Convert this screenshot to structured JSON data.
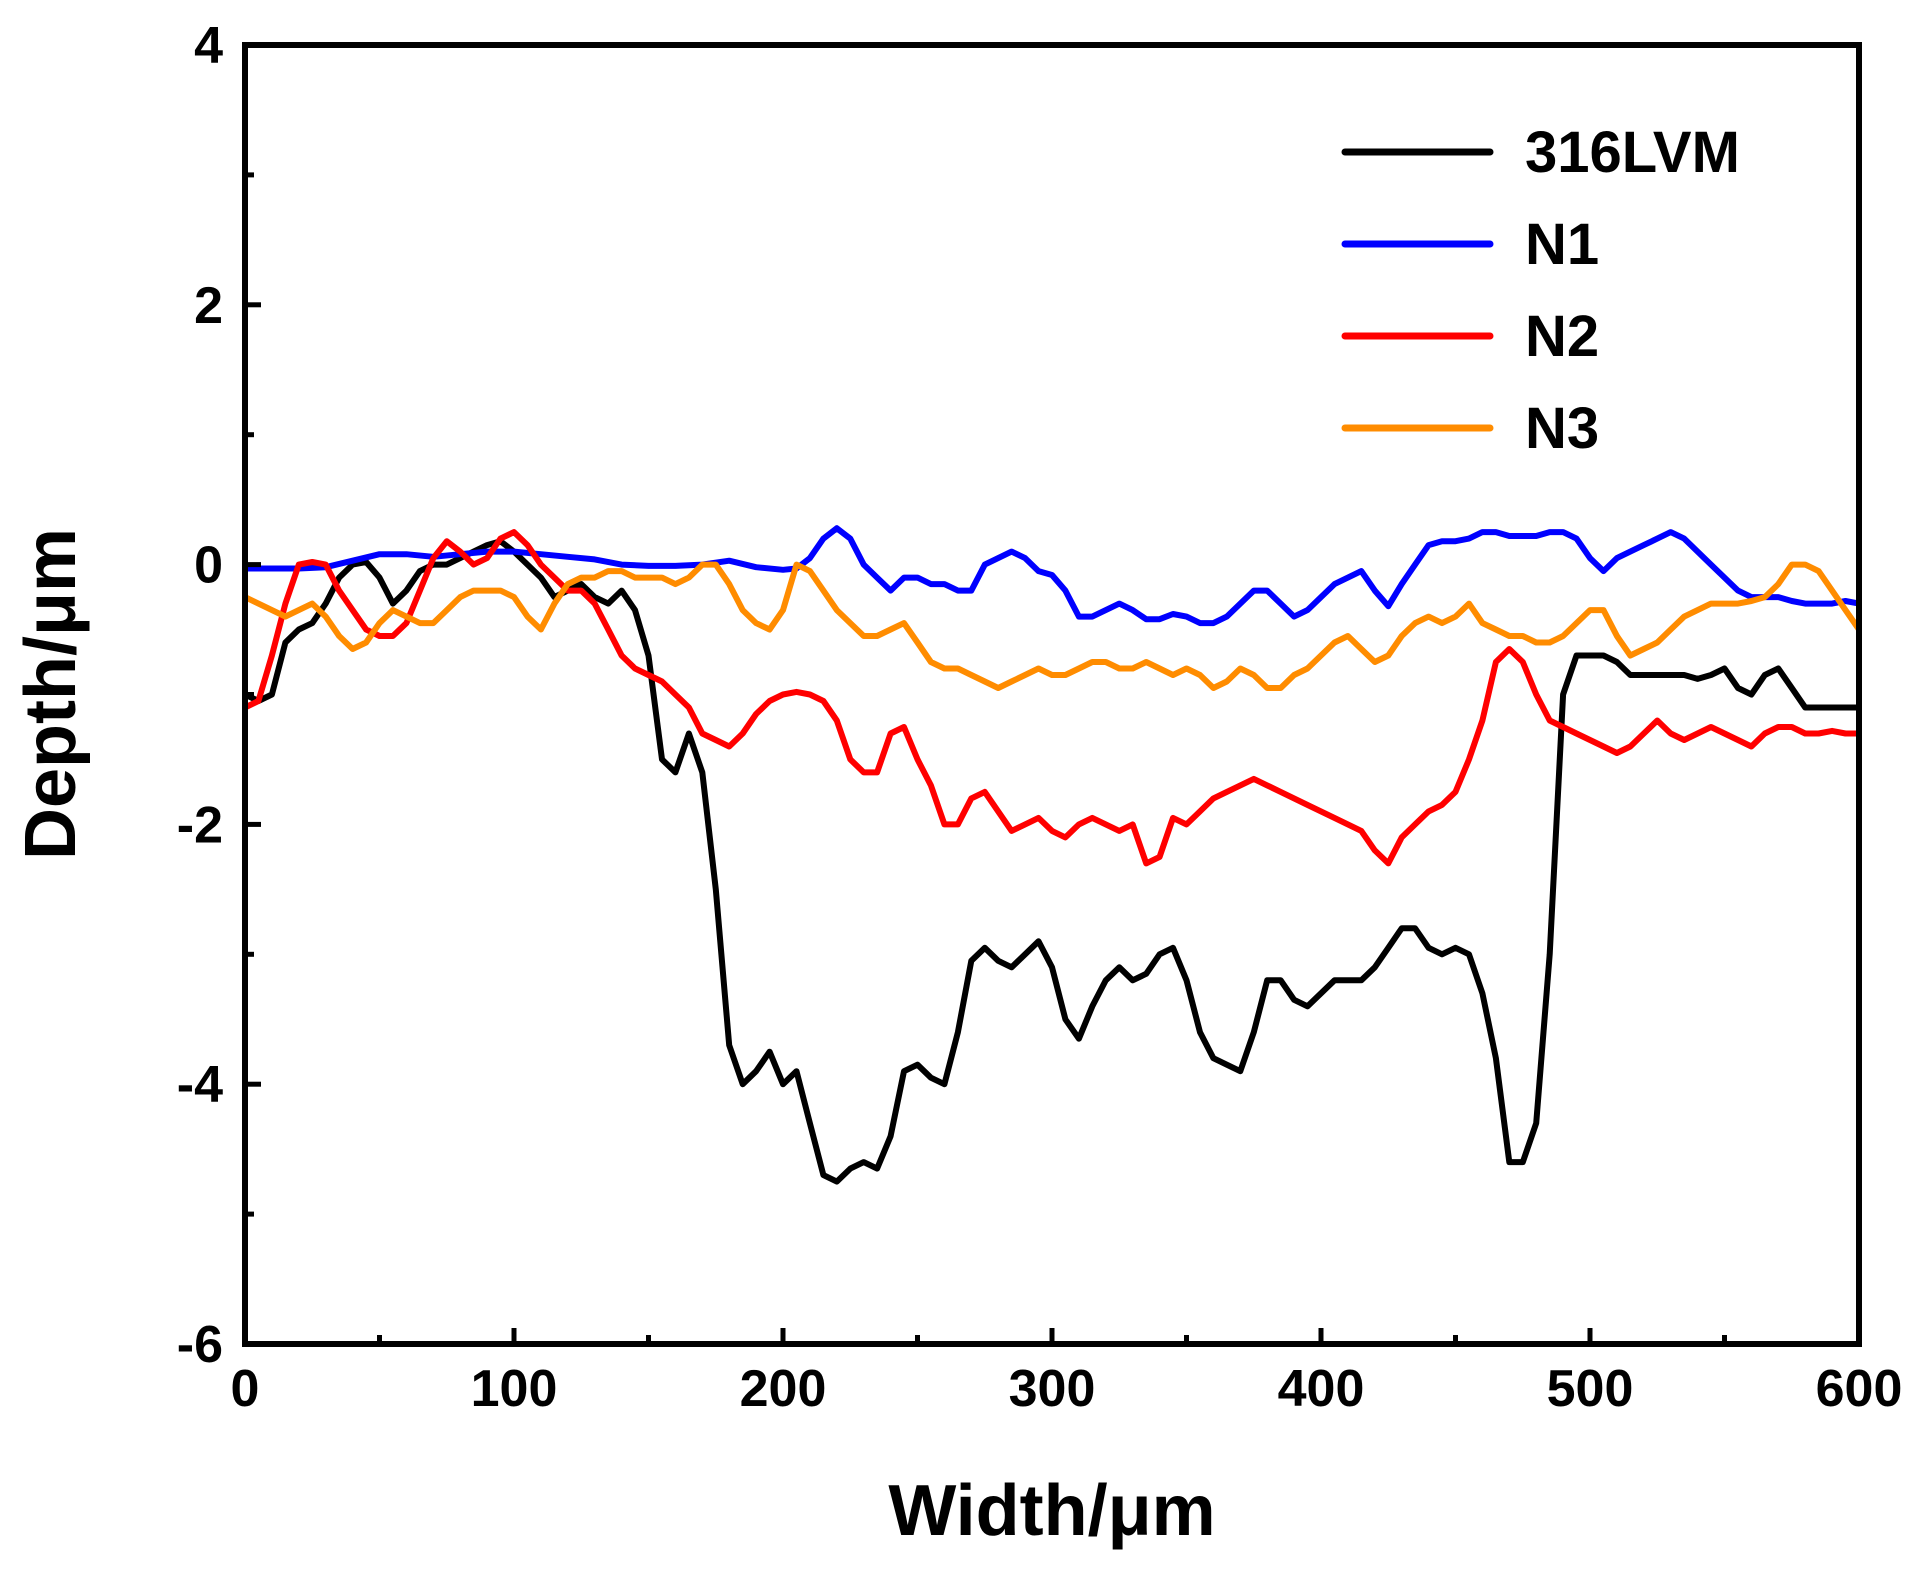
{
  "chart_data": {
    "type": "line",
    "xlabel": "Width/μm",
    "ylabel": "Depth/μm",
    "xlim": [
      0,
      600
    ],
    "ylim": [
      -6,
      4
    ],
    "xticks": [
      0,
      100,
      200,
      300,
      400,
      500,
      600
    ],
    "yticks": [
      -6,
      -4,
      -2,
      0,
      2,
      4
    ],
    "grid": false,
    "legend_position": "top-right",
    "series": [
      {
        "name": "316LVM",
        "color": "#000000",
        "x": [
          0,
          5,
          10,
          15,
          20,
          25,
          30,
          35,
          40,
          45,
          50,
          55,
          60,
          65,
          70,
          75,
          80,
          85,
          90,
          95,
          100,
          105,
          110,
          115,
          120,
          125,
          130,
          135,
          140,
          145,
          150,
          155,
          160,
          165,
          170,
          175,
          180,
          185,
          190,
          195,
          200,
          205,
          210,
          215,
          220,
          225,
          230,
          235,
          240,
          245,
          250,
          255,
          260,
          265,
          270,
          275,
          280,
          285,
          290,
          295,
          300,
          305,
          310,
          315,
          320,
          325,
          330,
          335,
          340,
          345,
          350,
          355,
          360,
          365,
          370,
          375,
          380,
          385,
          390,
          395,
          400,
          405,
          410,
          415,
          420,
          425,
          430,
          435,
          440,
          445,
          450,
          455,
          460,
          465,
          470,
          475,
          480,
          485,
          490,
          495,
          500,
          505,
          510,
          515,
          520,
          525,
          530,
          535,
          540,
          545,
          550,
          555,
          560,
          565,
          570,
          575,
          580,
          585,
          590,
          595,
          600
        ],
        "y": [
          -1.0,
          -1.05,
          -1.0,
          -0.6,
          -0.5,
          -0.45,
          -0.3,
          -0.1,
          0.0,
          0.02,
          -0.1,
          -0.3,
          -0.2,
          -0.05,
          -0.0,
          0.0,
          0.05,
          0.1,
          0.15,
          0.18,
          0.1,
          0.0,
          -0.1,
          -0.25,
          -0.2,
          -0.15,
          -0.25,
          -0.3,
          -0.2,
          -0.35,
          -0.7,
          -1.5,
          -1.6,
          -1.3,
          -1.6,
          -2.5,
          -3.7,
          -4.0,
          -3.9,
          -3.75,
          -4.0,
          -3.9,
          -4.3,
          -4.7,
          -4.75,
          -4.65,
          -4.6,
          -4.65,
          -4.4,
          -3.9,
          -3.85,
          -3.95,
          -4.0,
          -3.6,
          -3.05,
          -2.95,
          -3.05,
          -3.1,
          -3.0,
          -2.9,
          -3.1,
          -3.5,
          -3.65,
          -3.4,
          -3.2,
          -3.1,
          -3.2,
          -3.15,
          -3.0,
          -2.95,
          -3.2,
          -3.6,
          -3.8,
          -3.85,
          -3.9,
          -3.6,
          -3.2,
          -3.2,
          -3.35,
          -3.4,
          -3.3,
          -3.2,
          -3.2,
          -3.2,
          -3.1,
          -2.95,
          -2.8,
          -2.8,
          -2.95,
          -3.0,
          -2.95,
          -3.0,
          -3.3,
          -3.8,
          -4.6,
          -4.6,
          -4.3,
          -3.0,
          -1.0,
          -0.7,
          -0.7,
          -0.7,
          -0.75,
          -0.85,
          -0.85,
          -0.85,
          -0.85,
          -0.85,
          -0.88,
          -0.85,
          -0.8,
          -0.95,
          -1.0,
          -0.85,
          -0.8,
          -0.95,
          -1.1,
          -1.1,
          -1.1,
          -1.1,
          -1.1
        ]
      },
      {
        "name": "N1",
        "color": "#0000ff",
        "x": [
          0,
          10,
          20,
          30,
          40,
          50,
          60,
          70,
          80,
          90,
          100,
          110,
          120,
          130,
          140,
          150,
          160,
          170,
          180,
          190,
          200,
          205,
          210,
          215,
          220,
          225,
          230,
          235,
          240,
          245,
          250,
          255,
          260,
          265,
          270,
          275,
          280,
          285,
          290,
          295,
          300,
          305,
          310,
          315,
          320,
          325,
          330,
          335,
          340,
          345,
          350,
          355,
          360,
          365,
          370,
          375,
          380,
          385,
          390,
          395,
          400,
          405,
          410,
          415,
          420,
          425,
          430,
          435,
          440,
          445,
          450,
          455,
          460,
          465,
          470,
          475,
          480,
          485,
          490,
          495,
          500,
          505,
          510,
          515,
          520,
          525,
          530,
          535,
          540,
          545,
          550,
          555,
          560,
          565,
          570,
          575,
          580,
          585,
          590,
          595,
          600
        ],
        "y": [
          -0.03,
          -0.03,
          -0.03,
          -0.02,
          0.03,
          0.08,
          0.08,
          0.06,
          0.08,
          0.1,
          0.1,
          0.08,
          0.06,
          0.04,
          0.0,
          -0.01,
          -0.01,
          0.0,
          0.03,
          -0.02,
          -0.04,
          -0.03,
          0.05,
          0.2,
          0.28,
          0.2,
          0.0,
          -0.1,
          -0.2,
          -0.1,
          -0.1,
          -0.15,
          -0.15,
          -0.2,
          -0.2,
          0.0,
          0.05,
          0.1,
          0.05,
          -0.05,
          -0.08,
          -0.2,
          -0.4,
          -0.4,
          -0.35,
          -0.3,
          -0.35,
          -0.42,
          -0.42,
          -0.38,
          -0.4,
          -0.45,
          -0.45,
          -0.4,
          -0.3,
          -0.2,
          -0.2,
          -0.3,
          -0.4,
          -0.35,
          -0.25,
          -0.15,
          -0.1,
          -0.05,
          -0.2,
          -0.32,
          -0.15,
          0.0,
          0.15,
          0.18,
          0.18,
          0.2,
          0.25,
          0.25,
          0.22,
          0.22,
          0.22,
          0.25,
          0.25,
          0.2,
          0.05,
          -0.05,
          0.05,
          0.1,
          0.15,
          0.2,
          0.25,
          0.2,
          0.1,
          0.0,
          -0.1,
          -0.2,
          -0.25,
          -0.25,
          -0.25,
          -0.28,
          -0.3,
          -0.3,
          -0.3,
          -0.28,
          -0.3
        ]
      },
      {
        "name": "N2",
        "color": "#ff0000",
        "x": [
          0,
          5,
          10,
          15,
          20,
          25,
          30,
          35,
          40,
          45,
          50,
          55,
          60,
          65,
          70,
          75,
          80,
          85,
          90,
          95,
          100,
          105,
          110,
          115,
          120,
          125,
          130,
          135,
          140,
          145,
          150,
          155,
          160,
          165,
          170,
          175,
          180,
          185,
          190,
          195,
          200,
          205,
          210,
          215,
          220,
          225,
          230,
          235,
          240,
          245,
          250,
          255,
          260,
          265,
          270,
          275,
          280,
          285,
          290,
          295,
          300,
          305,
          310,
          315,
          320,
          325,
          330,
          335,
          340,
          345,
          350,
          355,
          360,
          365,
          370,
          375,
          380,
          385,
          390,
          395,
          400,
          405,
          410,
          415,
          420,
          425,
          430,
          435,
          440,
          445,
          450,
          455,
          460,
          465,
          470,
          475,
          480,
          485,
          490,
          495,
          500,
          505,
          510,
          515,
          520,
          525,
          530,
          535,
          540,
          545,
          550,
          555,
          560,
          565,
          570,
          575,
          580,
          585,
          590,
          595,
          600
        ],
        "y": [
          -1.1,
          -1.05,
          -0.7,
          -0.3,
          0.0,
          0.02,
          0.0,
          -0.2,
          -0.35,
          -0.5,
          -0.55,
          -0.55,
          -0.45,
          -0.2,
          0.05,
          0.18,
          0.1,
          0.0,
          0.05,
          0.2,
          0.25,
          0.15,
          0.0,
          -0.1,
          -0.2,
          -0.2,
          -0.3,
          -0.5,
          -0.7,
          -0.8,
          -0.85,
          -0.9,
          -1.0,
          -1.1,
          -1.3,
          -1.35,
          -1.4,
          -1.3,
          -1.15,
          -1.05,
          -1.0,
          -0.98,
          -1.0,
          -1.05,
          -1.2,
          -1.5,
          -1.6,
          -1.6,
          -1.3,
          -1.25,
          -1.5,
          -1.7,
          -2.0,
          -2.0,
          -1.8,
          -1.75,
          -1.9,
          -2.05,
          -2.0,
          -1.95,
          -2.05,
          -2.1,
          -2.0,
          -1.95,
          -2.0,
          -2.05,
          -2.0,
          -2.3,
          -2.25,
          -1.95,
          -2.0,
          -1.9,
          -1.8,
          -1.75,
          -1.7,
          -1.65,
          -1.7,
          -1.75,
          -1.8,
          -1.85,
          -1.9,
          -1.95,
          -2.0,
          -2.05,
          -2.2,
          -2.3,
          -2.1,
          -2.0,
          -1.9,
          -1.85,
          -1.75,
          -1.5,
          -1.2,
          -0.75,
          -0.65,
          -0.75,
          -1.0,
          -1.2,
          -1.25,
          -1.3,
          -1.35,
          -1.4,
          -1.45,
          -1.4,
          -1.3,
          -1.2,
          -1.3,
          -1.35,
          -1.3,
          -1.25,
          -1.3,
          -1.35,
          -1.4,
          -1.3,
          -1.25,
          -1.25,
          -1.3,
          -1.3,
          -1.28,
          -1.3,
          -1.3
        ]
      },
      {
        "name": "N3",
        "color": "#ff8c00",
        "x": [
          0,
          5,
          10,
          15,
          20,
          25,
          30,
          35,
          40,
          45,
          50,
          55,
          60,
          65,
          70,
          75,
          80,
          85,
          90,
          95,
          100,
          105,
          110,
          115,
          120,
          125,
          130,
          135,
          140,
          145,
          150,
          155,
          160,
          165,
          170,
          175,
          180,
          185,
          190,
          195,
          200,
          205,
          210,
          215,
          220,
          225,
          230,
          235,
          240,
          245,
          250,
          255,
          260,
          265,
          270,
          275,
          280,
          285,
          290,
          295,
          300,
          305,
          310,
          315,
          320,
          325,
          330,
          335,
          340,
          345,
          350,
          355,
          360,
          365,
          370,
          375,
          380,
          385,
          390,
          395,
          400,
          405,
          410,
          415,
          420,
          425,
          430,
          435,
          440,
          445,
          450,
          455,
          460,
          465,
          470,
          475,
          480,
          485,
          490,
          495,
          500,
          505,
          510,
          515,
          520,
          525,
          530,
          535,
          540,
          545,
          550,
          555,
          560,
          565,
          570,
          575,
          580,
          585,
          590,
          595,
          600
        ],
        "y": [
          -0.25,
          -0.3,
          -0.35,
          -0.4,
          -0.35,
          -0.3,
          -0.4,
          -0.55,
          -0.65,
          -0.6,
          -0.45,
          -0.35,
          -0.4,
          -0.45,
          -0.45,
          -0.35,
          -0.25,
          -0.2,
          -0.2,
          -0.2,
          -0.25,
          -0.4,
          -0.5,
          -0.3,
          -0.15,
          -0.1,
          -0.1,
          -0.05,
          -0.05,
          -0.1,
          -0.1,
          -0.1,
          -0.15,
          -0.1,
          0.0,
          0.0,
          -0.15,
          -0.35,
          -0.45,
          -0.5,
          -0.35,
          0.0,
          -0.05,
          -0.2,
          -0.35,
          -0.45,
          -0.55,
          -0.55,
          -0.5,
          -0.45,
          -0.6,
          -0.75,
          -0.8,
          -0.8,
          -0.85,
          -0.9,
          -0.95,
          -0.9,
          -0.85,
          -0.8,
          -0.85,
          -0.85,
          -0.8,
          -0.75,
          -0.75,
          -0.8,
          -0.8,
          -0.75,
          -0.8,
          -0.85,
          -0.8,
          -0.85,
          -0.95,
          -0.9,
          -0.8,
          -0.85,
          -0.95,
          -0.95,
          -0.85,
          -0.8,
          -0.7,
          -0.6,
          -0.55,
          -0.65,
          -0.75,
          -0.7,
          -0.55,
          -0.45,
          -0.4,
          -0.45,
          -0.4,
          -0.3,
          -0.45,
          -0.5,
          -0.55,
          -0.55,
          -0.6,
          -0.6,
          -0.55,
          -0.45,
          -0.35,
          -0.35,
          -0.55,
          -0.7,
          -0.65,
          -0.6,
          -0.5,
          -0.4,
          -0.35,
          -0.3,
          -0.3,
          -0.3,
          -0.28,
          -0.25,
          -0.15,
          0.0,
          0.0,
          -0.05,
          -0.2,
          -0.35,
          -0.5
        ]
      }
    ]
  }
}
